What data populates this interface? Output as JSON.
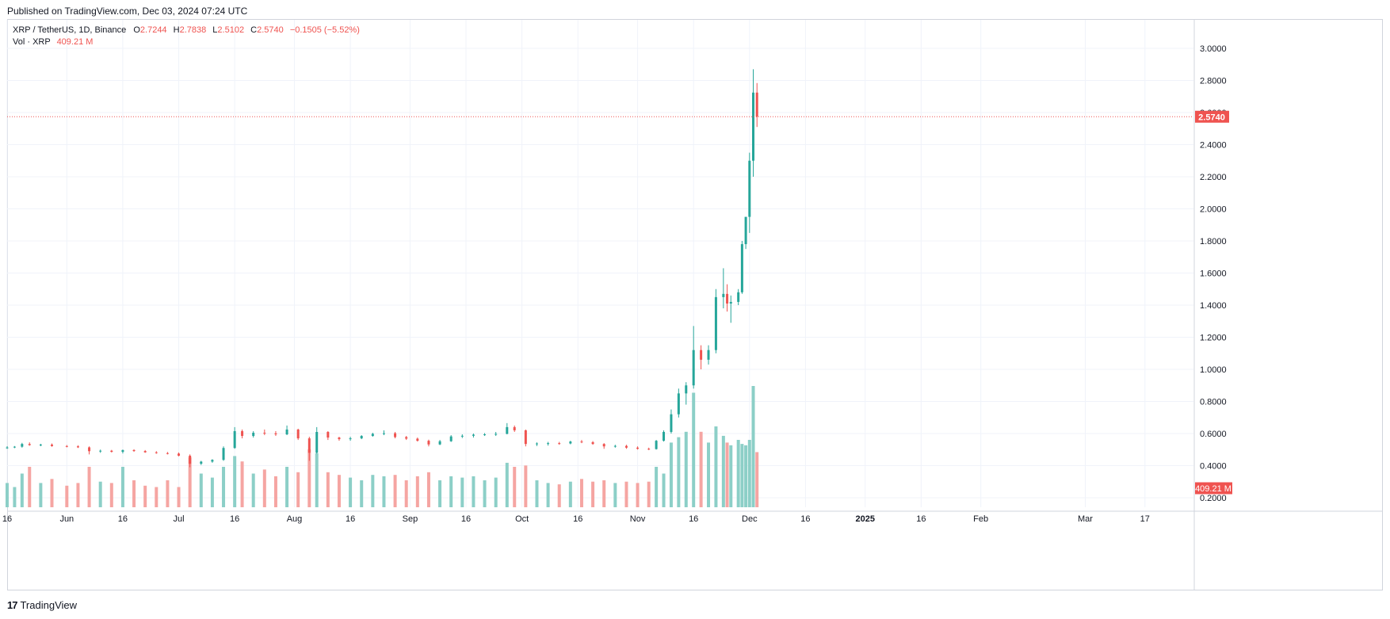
{
  "header": {
    "published": "Published on TradingView.com, Dec 03, 2024 07:24 UTC"
  },
  "legend": {
    "symbol": "XRP / TetherUS, 1D, Binance",
    "o_label": "O",
    "o_value": "2.7244",
    "h_label": "H",
    "h_value": "2.7838",
    "l_label": "L",
    "l_value": "2.5102",
    "c_label": "C",
    "c_value": "2.5740",
    "change": "−0.1505 (−5.52%)",
    "vol_label": "Vol · XRP",
    "vol_value": "409.21 M"
  },
  "footer": {
    "logo_mark": "17",
    "logo_text": "TradingView"
  },
  "colors": {
    "up": "#26a69a",
    "down": "#ef5350",
    "up_vol": "#8ccfc7",
    "down_vol": "#f5a5a2",
    "grid": "#f0f3fa",
    "text": "#131722"
  },
  "chart_data": {
    "type": "candlestick",
    "symbol": "XRP / TetherUS",
    "y_ticks": [
      "3.0000",
      "2.8000",
      "2.6000",
      "2.4000",
      "2.2000",
      "2.0000",
      "1.8000",
      "1.6000",
      "1.4000",
      "1.2000",
      "1.0000",
      "0.8000",
      "0.6000",
      "0.4000",
      "0.2000"
    ],
    "x_ticks": [
      {
        "label": "16",
        "date": "2024-05-16"
      },
      {
        "label": "Jun",
        "date": "2024-06-01"
      },
      {
        "label": "16",
        "date": "2024-06-16"
      },
      {
        "label": "Jul",
        "date": "2024-07-01"
      },
      {
        "label": "16",
        "date": "2024-07-16"
      },
      {
        "label": "Aug",
        "date": "2024-08-01"
      },
      {
        "label": "16",
        "date": "2024-08-16"
      },
      {
        "label": "Sep",
        "date": "2024-09-01"
      },
      {
        "label": "16",
        "date": "2024-09-16"
      },
      {
        "label": "Oct",
        "date": "2024-10-01"
      },
      {
        "label": "16",
        "date": "2024-10-16"
      },
      {
        "label": "Nov",
        "date": "2024-11-01"
      },
      {
        "label": "16",
        "date": "2024-11-16"
      },
      {
        "label": "Dec",
        "date": "2024-12-01"
      },
      {
        "label": "16",
        "date": "2024-12-16"
      },
      {
        "label": "2025",
        "date": "2025-01-01"
      },
      {
        "label": "16",
        "date": "2025-01-16"
      },
      {
        "label": "Feb",
        "date": "2025-02-01"
      },
      {
        "label": "Mar",
        "date": "2025-03-01"
      },
      {
        "label": "17",
        "date": "2025-03-17"
      }
    ],
    "last_price": "2.5740",
    "last_volume": "409.21 M",
    "y_range": [
      0.15,
      3.1
    ],
    "x_range": [
      "2024-05-16",
      "2025-03-30"
    ],
    "candles": [
      [
        "2024-05-16",
        0.511,
        0.521,
        0.505,
        0.513,
        180
      ],
      [
        "2024-05-18",
        0.513,
        0.522,
        0.509,
        0.518,
        150
      ],
      [
        "2024-05-20",
        0.518,
        0.542,
        0.512,
        0.535,
        250
      ],
      [
        "2024-05-22",
        0.535,
        0.545,
        0.524,
        0.528,
        300
      ],
      [
        "2024-05-25",
        0.528,
        0.536,
        0.521,
        0.531,
        180
      ],
      [
        "2024-05-28",
        0.531,
        0.538,
        0.518,
        0.522,
        210
      ],
      [
        "2024-06-01",
        0.522,
        0.528,
        0.514,
        0.52,
        160
      ],
      [
        "2024-06-04",
        0.52,
        0.527,
        0.51,
        0.514,
        180
      ],
      [
        "2024-06-07",
        0.514,
        0.52,
        0.47,
        0.49,
        300
      ],
      [
        "2024-06-10",
        0.49,
        0.5,
        0.48,
        0.493,
        190
      ],
      [
        "2024-06-13",
        0.493,
        0.498,
        0.482,
        0.486,
        180
      ],
      [
        "2024-06-16",
        0.486,
        0.5,
        0.476,
        0.497,
        300
      ],
      [
        "2024-06-19",
        0.497,
        0.502,
        0.486,
        0.491,
        200
      ],
      [
        "2024-06-22",
        0.491,
        0.497,
        0.48,
        0.483,
        160
      ],
      [
        "2024-06-25",
        0.483,
        0.49,
        0.474,
        0.478,
        150
      ],
      [
        "2024-06-28",
        0.478,
        0.485,
        0.47,
        0.475,
        200
      ],
      [
        "2024-07-01",
        0.475,
        0.482,
        0.458,
        0.462,
        150
      ],
      [
        "2024-07-04",
        0.462,
        0.47,
        0.39,
        0.412,
        370
      ],
      [
        "2024-07-07",
        0.412,
        0.43,
        0.404,
        0.425,
        250
      ],
      [
        "2024-07-10",
        0.425,
        0.44,
        0.418,
        0.436,
        220
      ],
      [
        "2024-07-13",
        0.436,
        0.52,
        0.43,
        0.51,
        300
      ],
      [
        "2024-07-16",
        0.51,
        0.64,
        0.505,
        0.615,
        380
      ],
      [
        "2024-07-18",
        0.615,
        0.625,
        0.57,
        0.585,
        340
      ],
      [
        "2024-07-21",
        0.585,
        0.615,
        0.575,
        0.605,
        250
      ],
      [
        "2024-07-24",
        0.605,
        0.625,
        0.59,
        0.601,
        280
      ],
      [
        "2024-07-27",
        0.601,
        0.615,
        0.585,
        0.595,
        230
      ],
      [
        "2024-07-30",
        0.595,
        0.65,
        0.59,
        0.625,
        300
      ],
      [
        "2024-08-02",
        0.625,
        0.63,
        0.56,
        0.57,
        260
      ],
      [
        "2024-08-05",
        0.57,
        0.58,
        0.43,
        0.48,
        430
      ],
      [
        "2024-08-07",
        0.48,
        0.64,
        0.475,
        0.61,
        400
      ],
      [
        "2024-08-10",
        0.61,
        0.615,
        0.56,
        0.575,
        260
      ],
      [
        "2024-08-13",
        0.575,
        0.58,
        0.555,
        0.565,
        240
      ],
      [
        "2024-08-16",
        0.565,
        0.58,
        0.555,
        0.57,
        220
      ],
      [
        "2024-08-19",
        0.57,
        0.59,
        0.565,
        0.585,
        200
      ],
      [
        "2024-08-22",
        0.585,
        0.605,
        0.58,
        0.598,
        240
      ],
      [
        "2024-08-25",
        0.598,
        0.62,
        0.59,
        0.602,
        230
      ],
      [
        "2024-08-28",
        0.602,
        0.61,
        0.57,
        0.578,
        240
      ],
      [
        "2024-08-31",
        0.578,
        0.585,
        0.56,
        0.568,
        200
      ],
      [
        "2024-09-03",
        0.568,
        0.575,
        0.55,
        0.555,
        230
      ],
      [
        "2024-09-06",
        0.555,
        0.562,
        0.52,
        0.532,
        260
      ],
      [
        "2024-09-09",
        0.532,
        0.56,
        0.528,
        0.552,
        200
      ],
      [
        "2024-09-12",
        0.552,
        0.59,
        0.548,
        0.582,
        230
      ],
      [
        "2024-09-15",
        0.582,
        0.595,
        0.572,
        0.586,
        220
      ],
      [
        "2024-09-18",
        0.586,
        0.6,
        0.575,
        0.593,
        230
      ],
      [
        "2024-09-21",
        0.593,
        0.603,
        0.585,
        0.595,
        200
      ],
      [
        "2024-09-24",
        0.595,
        0.61,
        0.585,
        0.598,
        220
      ],
      [
        "2024-09-27",
        0.598,
        0.665,
        0.595,
        0.64,
        330
      ],
      [
        "2024-09-29",
        0.64,
        0.65,
        0.61,
        0.62,
        300
      ],
      [
        "2024-10-02",
        0.62,
        0.625,
        0.52,
        0.535,
        310
      ],
      [
        "2024-10-05",
        0.535,
        0.545,
        0.522,
        0.538,
        200
      ],
      [
        "2024-10-08",
        0.538,
        0.548,
        0.525,
        0.54,
        180
      ],
      [
        "2024-10-11",
        0.54,
        0.548,
        0.53,
        0.538,
        170
      ],
      [
        "2024-10-14",
        0.538,
        0.555,
        0.533,
        0.55,
        190
      ],
      [
        "2024-10-17",
        0.55,
        0.56,
        0.54,
        0.546,
        210
      ],
      [
        "2024-10-20",
        0.546,
        0.553,
        0.53,
        0.535,
        190
      ],
      [
        "2024-10-23",
        0.535,
        0.54,
        0.505,
        0.52,
        200
      ],
      [
        "2024-10-26",
        0.52,
        0.53,
        0.512,
        0.523,
        180
      ],
      [
        "2024-10-29",
        0.523,
        0.53,
        0.505,
        0.512,
        190
      ],
      [
        "2024-11-01",
        0.512,
        0.52,
        0.5,
        0.505,
        180
      ],
      [
        "2024-11-04",
        0.505,
        0.512,
        0.497,
        0.503,
        190
      ],
      [
        "2024-11-06",
        0.503,
        0.56,
        0.5,
        0.555,
        300
      ],
      [
        "2024-11-08",
        0.555,
        0.62,
        0.55,
        0.61,
        250
      ],
      [
        "2024-11-10",
        0.61,
        0.75,
        0.6,
        0.72,
        480
      ],
      [
        "2024-11-12",
        0.72,
        0.88,
        0.7,
        0.85,
        520
      ],
      [
        "2024-11-14",
        0.85,
        0.92,
        0.78,
        0.9,
        560
      ],
      [
        "2024-11-16",
        0.9,
        1.27,
        0.88,
        1.12,
        850
      ],
      [
        "2024-11-18",
        1.12,
        1.15,
        1.0,
        1.06,
        560
      ],
      [
        "2024-11-20",
        1.06,
        1.15,
        1.03,
        1.12,
        480
      ],
      [
        "2024-11-22",
        1.12,
        1.5,
        1.1,
        1.45,
        600
      ],
      [
        "2024-11-24",
        1.45,
        1.63,
        1.38,
        1.47,
        530
      ],
      [
        "2024-11-25",
        1.47,
        1.53,
        1.36,
        1.41,
        480
      ],
      [
        "2024-11-26",
        1.41,
        1.46,
        1.29,
        1.42,
        460
      ],
      [
        "2024-11-28",
        1.42,
        1.5,
        1.4,
        1.48,
        500
      ],
      [
        "2024-11-29",
        1.48,
        1.8,
        1.47,
        1.78,
        470
      ],
      [
        "2024-11-30",
        1.78,
        1.95,
        1.75,
        1.95,
        460
      ],
      [
        "2024-12-01",
        1.95,
        2.35,
        1.85,
        2.3,
        500
      ],
      [
        "2024-12-02",
        2.3,
        2.87,
        2.2,
        2.7244,
        900
      ],
      [
        "2024-12-03",
        2.7244,
        2.7838,
        2.5102,
        2.574,
        409.21
      ]
    ]
  }
}
